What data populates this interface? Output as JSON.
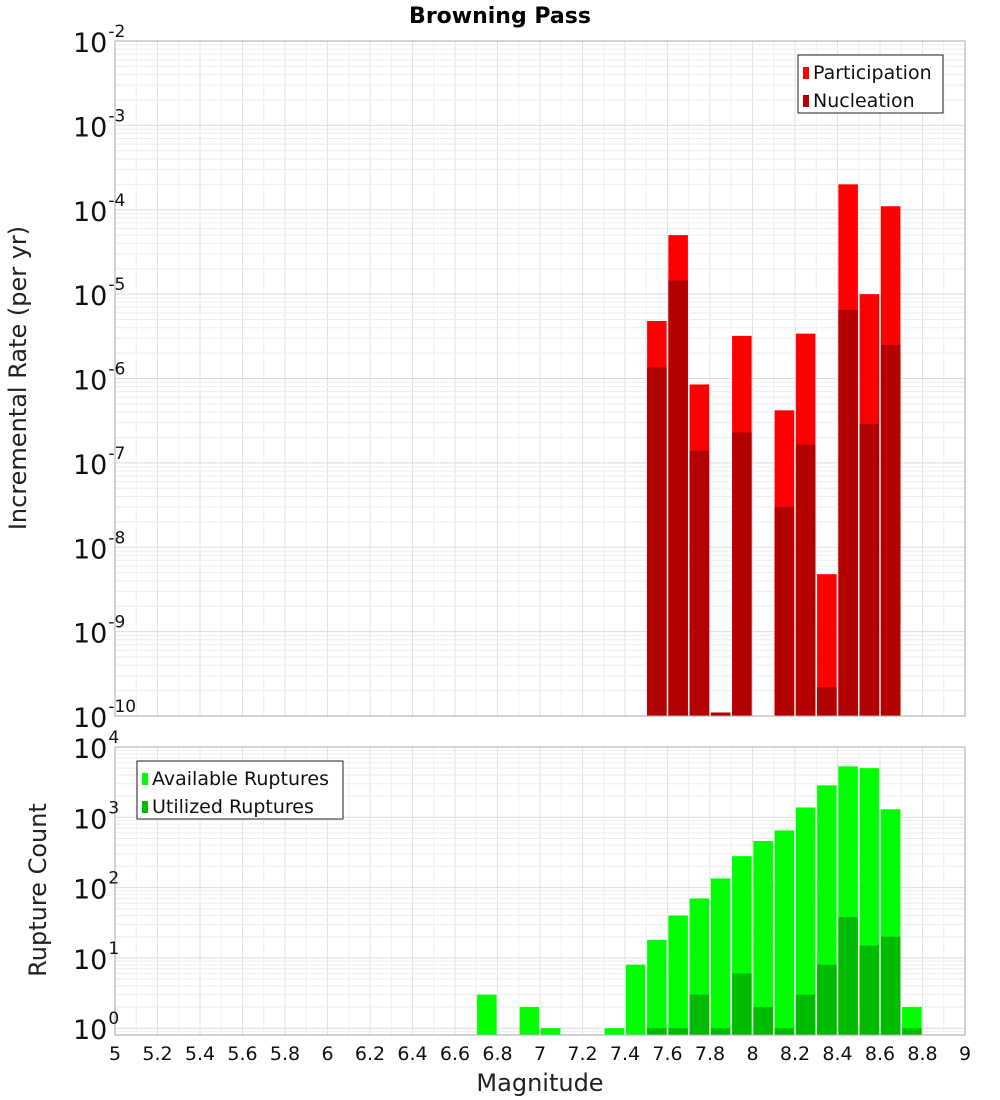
{
  "chart_data": [
    {
      "type": "bar",
      "title": "Browning Pass",
      "xlabel": "",
      "ylabel": "Incremental Rate (per yr)",
      "yscale": "log",
      "ylim": [
        1e-10,
        0.01
      ],
      "xlim": [
        5,
        9
      ],
      "grid": true,
      "legend_position": "top-right",
      "ytick_exponents": [
        "-2",
        "-3",
        "-4",
        "-5",
        "-6",
        "-7",
        "-8",
        "-9",
        "-10"
      ],
      "series": [
        {
          "name": "Participation",
          "color": "#ff0000",
          "x": [
            7.55,
            7.65,
            7.75,
            7.85,
            7.95,
            8.15,
            8.25,
            8.35,
            8.45,
            8.55,
            8.65
          ],
          "values": [
            4.8e-06,
            5e-05,
            8.5e-07,
            1.1e-10,
            3.2e-06,
            4.2e-07,
            3.4e-06,
            4.8e-09,
            0.0002,
            1e-05,
            0.00011
          ]
        },
        {
          "name": "Nucleation",
          "color": "#b30000",
          "x": [
            7.55,
            7.65,
            7.75,
            7.85,
            7.95,
            8.15,
            8.25,
            8.35,
            8.45,
            8.55,
            8.65
          ],
          "values": [
            1.35e-06,
            1.45e-05,
            1.4e-07,
            1.1e-10,
            2.3e-07,
            3e-08,
            1.65e-07,
            2.2e-10,
            6.5e-06,
            2.9e-07,
            2.5e-06
          ]
        }
      ]
    },
    {
      "type": "bar",
      "title": "",
      "xlabel": "Magnitude",
      "ylabel": "Rupture Count",
      "yscale": "log",
      "ylim": [
        0.8,
        10000
      ],
      "xlim": [
        5,
        9
      ],
      "grid": true,
      "legend_position": "top-left",
      "ytick_exponents": [
        "4",
        "3",
        "2",
        "1",
        "0"
      ],
      "xticks": [
        "5",
        "5.2",
        "5.4",
        "5.6",
        "5.8",
        "6",
        "6.2",
        "6.4",
        "6.6",
        "6.8",
        "7",
        "7.2",
        "7.4",
        "7.6",
        "7.8",
        "8",
        "8.2",
        "8.4",
        "8.6",
        "8.8",
        "9"
      ],
      "series": [
        {
          "name": "Available Ruptures",
          "color": "#00ff00",
          "x": [
            6.75,
            6.95,
            7.05,
            7.35,
            7.45,
            7.55,
            7.65,
            7.75,
            7.85,
            7.95,
            8.05,
            8.15,
            8.25,
            8.35,
            8.45,
            8.55,
            8.65,
            8.75
          ],
          "values": [
            3,
            2,
            1,
            1,
            8,
            18,
            40,
            70,
            135,
            280,
            460,
            650,
            1380,
            2850,
            5300,
            5000,
            1300,
            2
          ]
        },
        {
          "name": "Utilized Ruptures",
          "color": "#00bb00",
          "x": [
            7.55,
            7.65,
            7.75,
            7.85,
            7.95,
            8.05,
            8.15,
            8.25,
            8.35,
            8.45,
            8.55,
            8.65,
            8.75
          ],
          "values": [
            1,
            1,
            3,
            1,
            6,
            2,
            1,
            3,
            8,
            38,
            15,
            20,
            1
          ]
        }
      ]
    }
  ]
}
